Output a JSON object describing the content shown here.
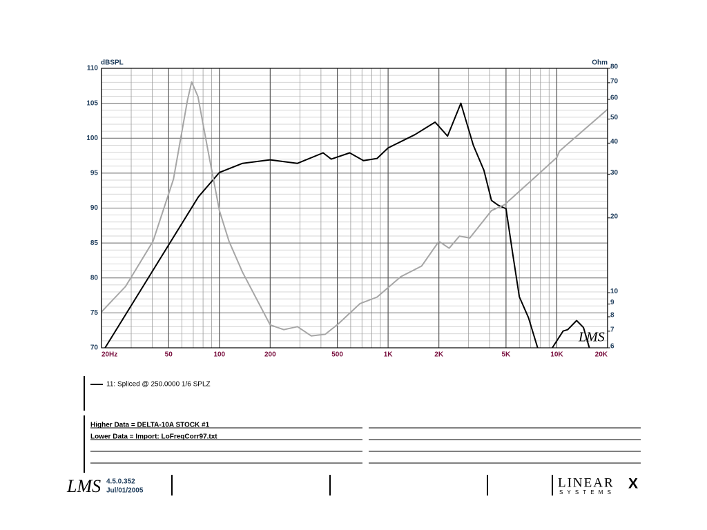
{
  "chart_data": {
    "type": "line",
    "y_label": "dBSPL",
    "y2_label": "Ohm",
    "x_label": "Hz",
    "xscale": "log",
    "y2scale": "log",
    "grid": true,
    "xlim": [
      20,
      20000
    ],
    "xticks": [
      20,
      50,
      100,
      200,
      500,
      {
        "value": 1000,
        "label": "1K"
      },
      {
        "value": 2000,
        "label": "2K"
      },
      {
        "value": 5000,
        "label": "5K"
      },
      {
        "value": 10000,
        "label": "10K"
      },
      {
        "value": 20000,
        "label": "20K"
      }
    ],
    "x_minor_ticks": [
      30,
      40,
      60,
      70,
      80,
      90,
      300,
      400,
      600,
      700,
      800,
      900,
      3000,
      4000,
      6000,
      7000,
      8000,
      9000
    ],
    "ylim": [
      70,
      110
    ],
    "yticks": [
      70,
      75,
      80,
      85,
      90,
      95,
      100,
      105,
      110
    ],
    "y_minor_ticks": [
      71,
      72,
      73,
      74,
      76,
      77,
      78,
      79,
      81,
      82,
      83,
      84,
      86,
      87,
      88,
      89,
      91,
      92,
      93,
      94,
      96,
      97,
      98,
      99,
      101,
      102,
      103,
      104,
      106,
      107,
      108,
      109
    ],
    "y2lim": [
      6,
      80
    ],
    "y2ticks": [
      6,
      7,
      8,
      9,
      10,
      20,
      30,
      40,
      50,
      60,
      70,
      80
    ],
    "series": [
      {
        "name": "11: Spliced @ 250.0000  1/6 SPLZ",
        "color": "#000000",
        "x": [
          21,
          75,
          100,
          137,
          200,
          290,
          412,
          460,
          592,
          715,
          860,
          1000,
          1440,
          1900,
          2250,
          2700,
          3200,
          3700,
          4100,
          4500,
          5000,
          5500,
          6000,
          6800,
          7700,
          8500,
          9400,
          10900,
          11600,
          13100,
          14400,
          15600
        ],
        "values": [
          70,
          91.6,
          95.1,
          96.4,
          96.9,
          96.4,
          97.9,
          97,
          97.9,
          96.8,
          97.1,
          98.6,
          100.5,
          102.3,
          100.3,
          105,
          99,
          95.4,
          91.1,
          90.4,
          89.9,
          83.2,
          77.3,
          74.3,
          70,
          null,
          70,
          72.4,
          72.6,
          73.9,
          72.9,
          70
        ]
      },
      {
        "color": "#a6a6a6",
        "axis": "y2",
        "x": [
          20,
          27.8,
          40.4,
          53.4,
          64.7,
          68.5,
          74.6,
          85.7,
          100,
          114,
          137,
          200,
          241,
          290,
          350,
          424,
          508,
          680,
          860,
          1190,
          1580,
          2000,
          2300,
          2650,
          3050,
          4100,
          4900,
          10000,
          10400,
          20000
        ],
        "values": [
          8.37,
          10.6,
          16.1,
          28.6,
          59.7,
          70.5,
          61.6,
          37.1,
          21.4,
          16.1,
          12.1,
          7.42,
          7.1,
          7.3,
          6.7,
          6.8,
          7.5,
          9.03,
          9.6,
          11.6,
          12.8,
          16.1,
          15.1,
          16.9,
          16.6,
          21.4,
          22.6,
          35,
          37.2,
          54.7
        ]
      }
    ]
  },
  "watermark": "LMS",
  "notes": [
    "Higher Data = DELTA-10A STOCK #1",
    "Lower  Data = Import: LoFreqCorr97.txt"
  ],
  "footer": {
    "logo": "LMS",
    "version": "4.5.0.352",
    "date": "Jul/01/2005",
    "brand": "LINEAR",
    "brand_mark": "X",
    "brand_sub": "S Y S T E M S"
  }
}
